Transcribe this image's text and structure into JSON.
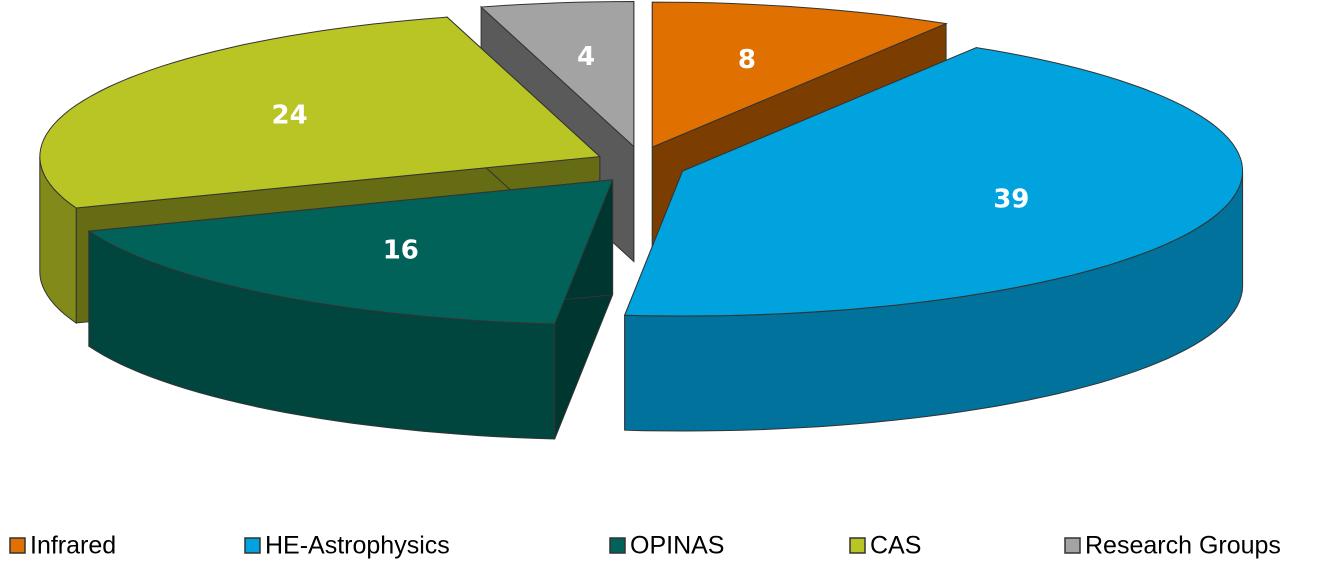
{
  "chart_data": {
    "type": "pie",
    "categories": [
      "Infrared",
      "HE-Astrophysics",
      "OPINAS",
      "CAS",
      "Research Groups"
    ],
    "values": [
      8,
      39,
      16,
      24,
      4
    ],
    "colors": [
      "#e07000",
      "#00a3dd",
      "#006258",
      "#b9c525",
      "#a3a3a3"
    ],
    "legend": "bottom"
  }
}
